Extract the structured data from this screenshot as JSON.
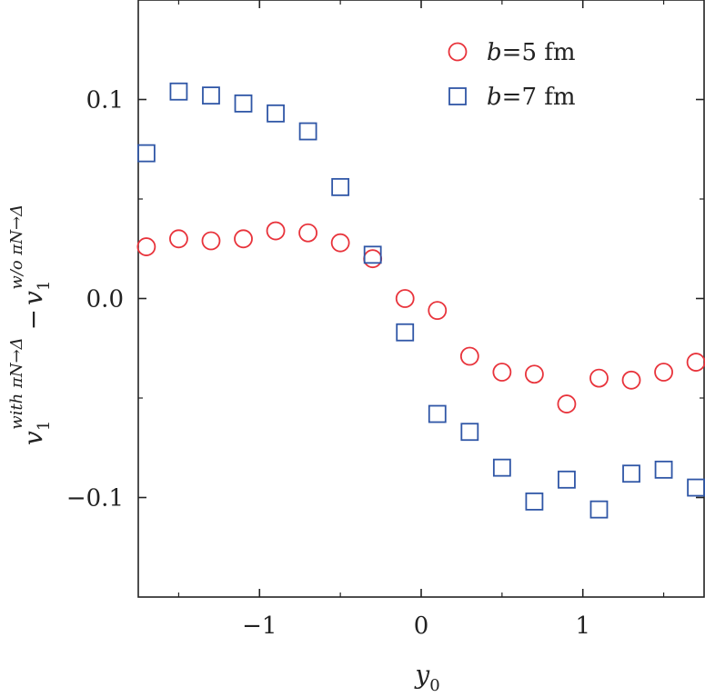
{
  "chart_data": {
    "type": "scatter",
    "x_label": {
      "main": "y",
      "sub": "0"
    },
    "y_label": {
      "main": "v",
      "sub": "1",
      "sup_with": "with πN→Δ",
      "minus": "−",
      "sup_without": "w/o πN→Δ"
    },
    "xlim": [
      -1.75,
      1.75
    ],
    "ylim": [
      -0.15,
      0.15
    ],
    "x_ticks": [
      {
        "value": -1,
        "label": "−1"
      },
      {
        "value": 0,
        "label": "0"
      },
      {
        "value": 1,
        "label": "1"
      }
    ],
    "y_ticks": [
      {
        "value": -0.1,
        "label": "−0.1"
      },
      {
        "value": 0.0,
        "label": "0.0"
      },
      {
        "value": 0.1,
        "label": "0.1"
      }
    ],
    "legend_position": "top-right",
    "series": [
      {
        "name_italic": "b",
        "name_rest": "=5 fm",
        "marker": "circle",
        "color": "#e8333b",
        "x": [
          -1.7,
          -1.5,
          -1.3,
          -1.1,
          -0.9,
          -0.7,
          -0.5,
          -0.3,
          -0.1,
          0.1,
          0.3,
          0.5,
          0.7,
          0.9,
          1.1,
          1.3,
          1.5,
          1.7
        ],
        "y": [
          0.026,
          0.03,
          0.029,
          0.03,
          0.034,
          0.033,
          0.028,
          0.02,
          0.0,
          -0.006,
          -0.029,
          -0.037,
          -0.038,
          -0.053,
          -0.04,
          -0.041,
          -0.037,
          -0.032
        ]
      },
      {
        "name_italic": "b",
        "name_rest": "=7 fm",
        "marker": "square",
        "color": "#2f56a6",
        "x": [
          -1.7,
          -1.5,
          -1.3,
          -1.1,
          -0.9,
          -0.7,
          -0.5,
          -0.3,
          -0.1,
          0.1,
          0.3,
          0.5,
          0.7,
          0.9,
          1.1,
          1.3,
          1.5,
          1.7
        ],
        "y": [
          0.073,
          0.104,
          0.102,
          0.098,
          0.093,
          0.084,
          0.056,
          0.022,
          -0.017,
          -0.058,
          -0.067,
          -0.085,
          -0.102,
          -0.091,
          -0.106,
          -0.088,
          -0.086,
          -0.095
        ]
      }
    ]
  }
}
